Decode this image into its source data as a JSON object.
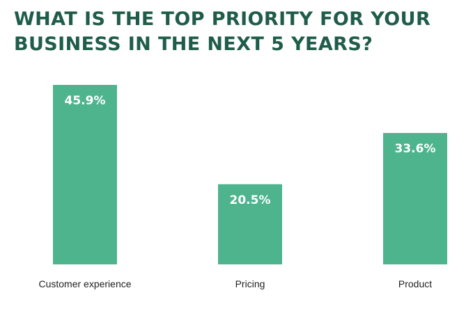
{
  "title_lines": [
    "WHAT IS THE TOP PRIORITY FOR YOUR",
    "BUSINESS IN THE NEXT 5 YEARS?"
  ],
  "colors": {
    "title": "#1f5c49",
    "bar": "#4db48e",
    "bar_label": "#ffffff",
    "category_label": "#222222"
  },
  "chart_data": {
    "type": "bar",
    "title": "WHAT IS THE TOP PRIORITY FOR YOUR BUSINESS IN THE NEXT 5 YEARS?",
    "categories": [
      "Customer experience",
      "Pricing",
      "Product"
    ],
    "values": [
      45.9,
      20.5,
      33.6
    ],
    "data_labels": [
      "45.9%",
      "20.5%",
      "33.6%"
    ],
    "unit": "%",
    "ylim": [
      0,
      45.9
    ],
    "grid": false,
    "legend": "none"
  }
}
